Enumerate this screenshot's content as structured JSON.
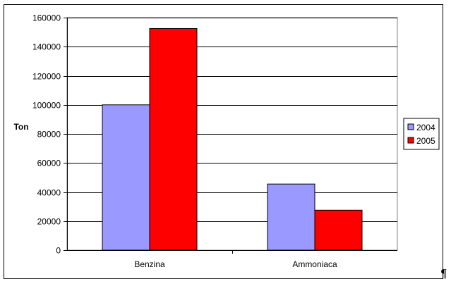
{
  "chart_data": {
    "type": "bar",
    "categories": [
      "Benzina",
      "Ammoniaca"
    ],
    "series": [
      {
        "name": "2004",
        "values": [
          100000,
          45500
        ],
        "color": "#9999ff"
      },
      {
        "name": "2005",
        "values": [
          152500,
          27500
        ],
        "color": "#ff0000"
      }
    ],
    "ylabel": "Ton",
    "ylim": [
      0,
      160000
    ],
    "yticks": [
      0,
      20000,
      40000,
      60000,
      80000,
      100000,
      120000,
      140000,
      160000
    ],
    "ytick_labels": [
      "0",
      "20000",
      "40000",
      "60000",
      "80000",
      "100000",
      "120000",
      "140000",
      "160000"
    ],
    "grid": true,
    "legend_position": "right",
    "plot_background": "#ffffff",
    "gridline_color": "#000000"
  },
  "paragraph_mark": "¶"
}
